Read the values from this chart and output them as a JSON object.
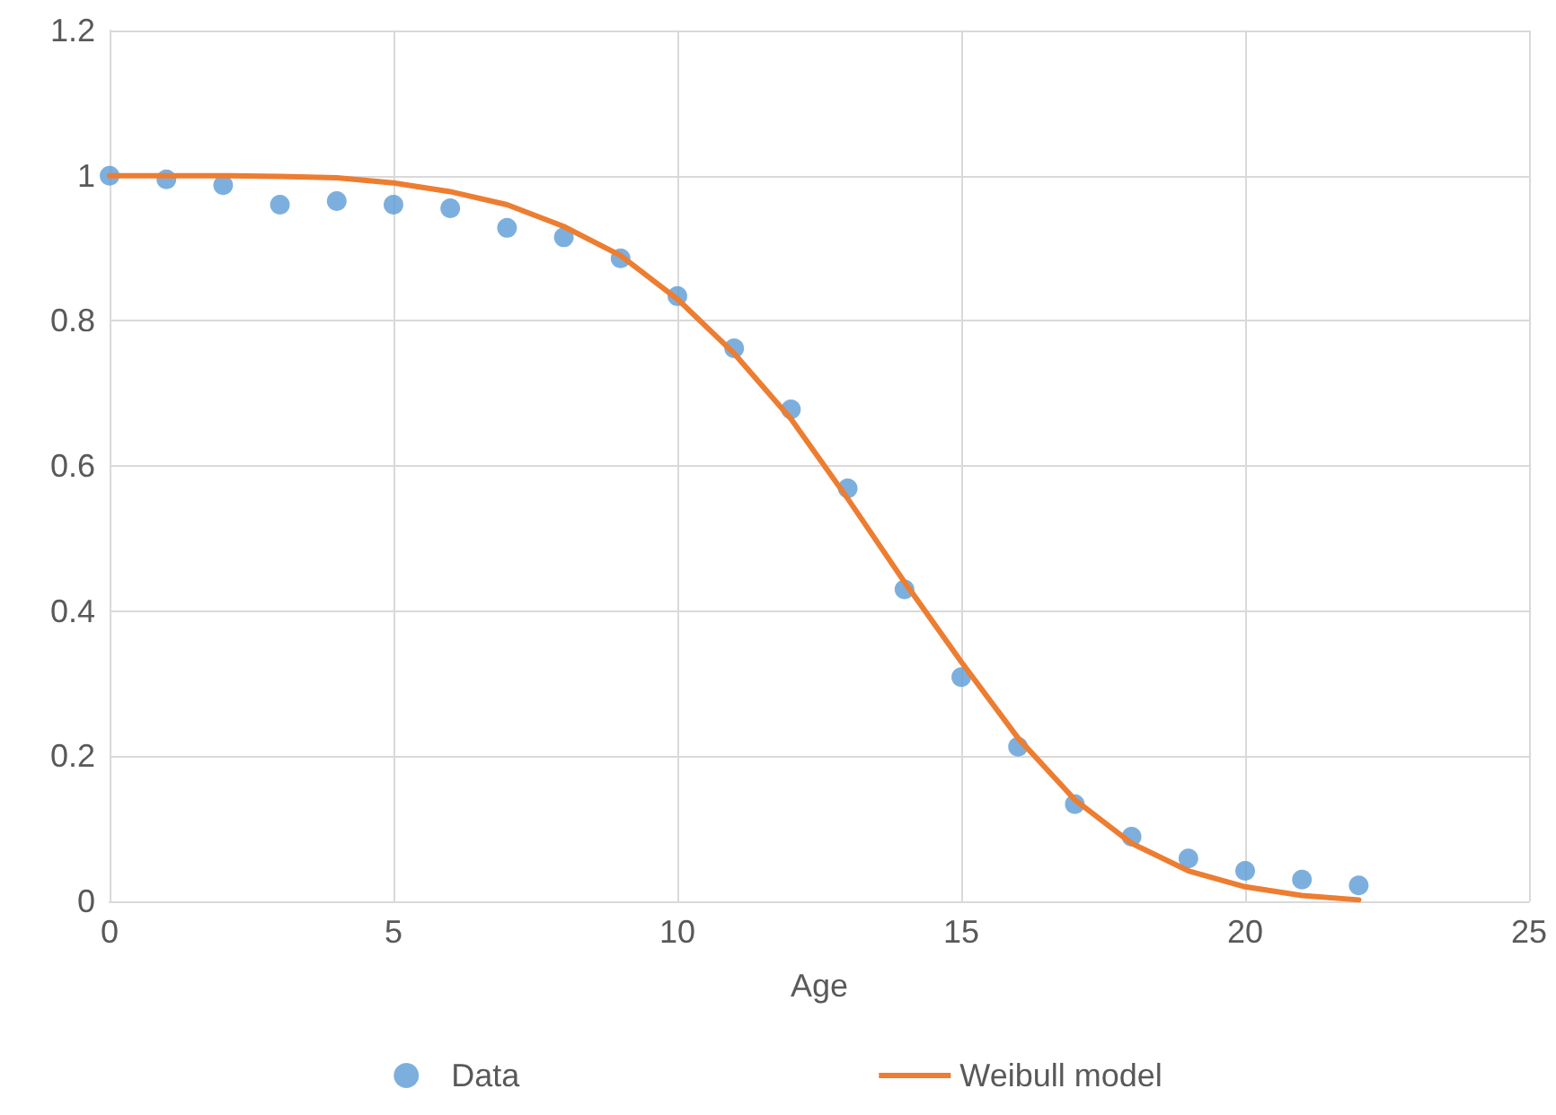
{
  "chart_data": {
    "type": "scatter",
    "xlabel": "Age",
    "xlim": [
      0,
      25
    ],
    "xticks": [
      0,
      5,
      10,
      15,
      20,
      25
    ],
    "ylim": [
      0,
      1.2
    ],
    "yticks": [
      0,
      0.2,
      0.4,
      0.6,
      0.8,
      1,
      1.2
    ],
    "grid": true,
    "legend": "bottom",
    "series": [
      {
        "name": "Data",
        "marker": "circle",
        "color": "#5b9bd5",
        "x": [
          0,
          1,
          2,
          3,
          4,
          5,
          6,
          7,
          8,
          9,
          10,
          11,
          12,
          13,
          14,
          15,
          16,
          17,
          18,
          19,
          20,
          21,
          22
        ],
        "values": [
          1.0,
          0.995,
          0.987,
          0.96,
          0.965,
          0.96,
          0.955,
          0.928,
          0.915,
          0.886,
          0.834,
          0.762,
          0.678,
          0.569,
          0.43,
          0.309,
          0.213,
          0.134,
          0.089,
          0.059,
          0.042,
          0.03,
          0.022
        ]
      },
      {
        "name": "Weibull model",
        "type": "line",
        "marker": "none",
        "line_style": "solid",
        "color": "#ed7d31",
        "x": [
          0,
          1,
          2,
          3,
          4,
          5,
          6,
          7,
          8,
          9,
          10,
          11,
          12,
          13,
          14,
          15,
          16,
          17,
          18,
          19,
          20,
          21,
          22
        ],
        "values": [
          1.0,
          1.0,
          1.0,
          0.999,
          0.997,
          0.99,
          0.978,
          0.96,
          0.93,
          0.89,
          0.83,
          0.755,
          0.665,
          0.555,
          0.44,
          0.33,
          0.225,
          0.14,
          0.08,
          0.042,
          0.02,
          0.008,
          0.002
        ]
      }
    ]
  }
}
